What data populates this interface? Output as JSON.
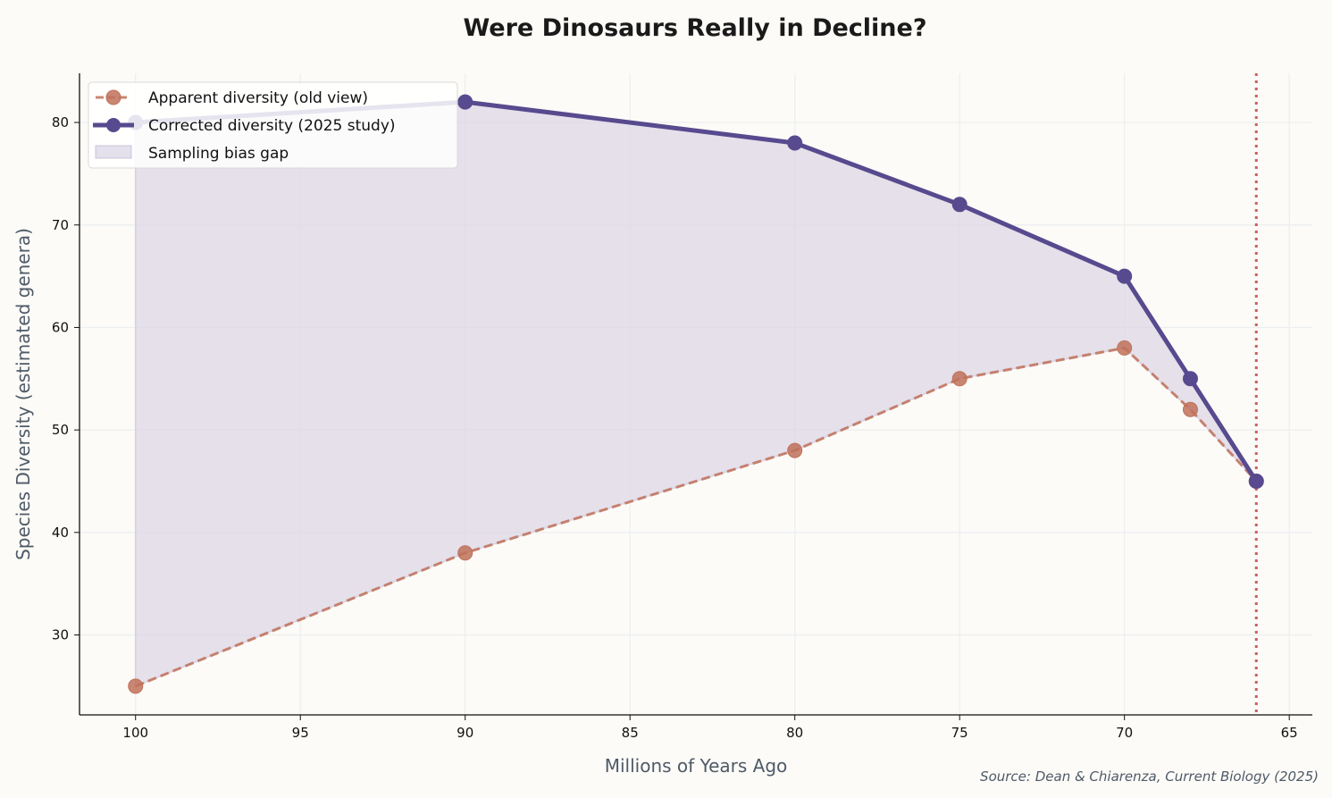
{
  "chart_data": {
    "type": "line",
    "title": "Were Dinosaurs Really in Decline?",
    "xlabel": "Millions of Years Ago",
    "ylabel": "Species Diversity (estimated genera)",
    "source": "Source: Dean & Chiarenza, Current Biology (2025)",
    "x": [
      100,
      90,
      80,
      75,
      70,
      68,
      66
    ],
    "xlim": [
      101.7,
      64.3
    ],
    "ylim": [
      22.2,
      84.8
    ],
    "x_inverted": true,
    "xticks": [
      100,
      95,
      90,
      85,
      80,
      75,
      70,
      65
    ],
    "yticks": [
      30,
      40,
      50,
      60,
      70,
      80
    ],
    "grid": true,
    "legend_position": "top-left",
    "series": [
      {
        "name": "Apparent diversity (old view)",
        "values": [
          25,
          38,
          48,
          55,
          58,
          52,
          45
        ],
        "color": "#c0715a",
        "style": "dashed"
      },
      {
        "name": "Corrected diversity (2025 study)",
        "values": [
          80,
          82,
          78,
          72,
          65,
          55,
          45
        ],
        "color": "#574a8e",
        "style": "solid"
      }
    ],
    "fill_between": {
      "name": "Sampling bias gap",
      "color": "#e4e0e8"
    },
    "vline": {
      "x": 66,
      "color": "#c9605f",
      "style": "dotted"
    }
  }
}
